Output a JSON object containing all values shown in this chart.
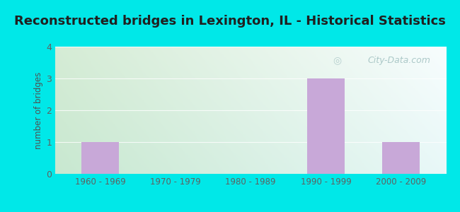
{
  "title": "Reconstructed bridges in Lexington, IL - Historical Statistics",
  "categories": [
    "1960 - 1969",
    "1970 - 1979",
    "1980 - 1989",
    "1990 - 1999",
    "2000 - 2009"
  ],
  "values": [
    1,
    0,
    0,
    3,
    1
  ],
  "bar_color": "#c8a8d8",
  "ylabel": "number of bridges",
  "ylim": [
    0,
    4
  ],
  "yticks": [
    0,
    1,
    2,
    3,
    4
  ],
  "title_fontsize": 13,
  "title_fontweight": "bold",
  "outer_bg_color": "#00e8e8",
  "grad_top_left": "#d8edd8",
  "grad_bottom_right": "#f0fafc",
  "grid_color": "#ffffff",
  "axis_label_color": "#505050",
  "tick_label_color": "#606060",
  "watermark_text": "City-Data.com",
  "watermark_color": "#a0c0c0",
  "bar_width": 0.5
}
